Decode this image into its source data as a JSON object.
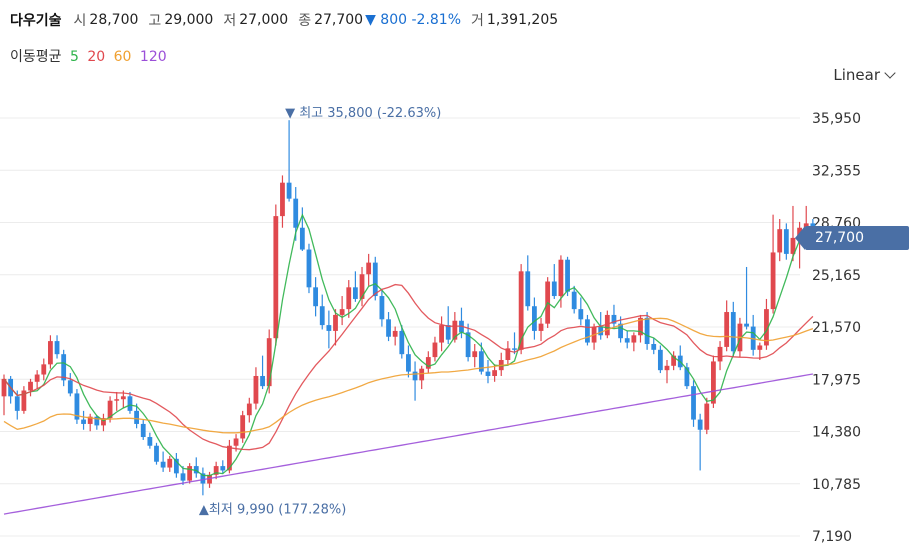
{
  "header": {
    "name": "다우기술",
    "open_label": "시",
    "open": "28,700",
    "high_label": "고",
    "high": "29,000",
    "low_label": "저",
    "low": "27,000",
    "close_label": "종",
    "close": "27,700",
    "change": "▼ 800 -2.81%",
    "volume_label": "거",
    "volume": "1,391,205"
  },
  "ma_legend": {
    "label": "이동평균",
    "periods": [
      {
        "text": "5",
        "color": "#2db34a"
      },
      {
        "text": "20",
        "color": "#e0484e"
      },
      {
        "text": "60",
        "color": "#f0a030"
      },
      {
        "text": "120",
        "color": "#9b4fd8"
      }
    ]
  },
  "scale_selector": {
    "label": "Linear"
  },
  "colors": {
    "up": "#e0484e",
    "down": "#2f8be0",
    "grid": "#ececec",
    "price_tag": "#4a6fa5",
    "ma5": "#2db34a",
    "ma20": "#e0484e",
    "ma60": "#f0a030",
    "ma120": "#9b4fd8"
  },
  "chart_data": {
    "type": "candlestick",
    "y_ticks": [
      "35,950",
      "32,355",
      "28,760",
      "25,165",
      "21,570",
      "17,975",
      "14,380",
      "10,785",
      "7,190"
    ],
    "ylim": [
      7190,
      35950
    ],
    "current_price": "27,700",
    "annotations": {
      "high": {
        "label": "최고",
        "value": "35,800 (-22.63%)",
        "price": 35800,
        "index": 43
      },
      "low": {
        "label": "최저",
        "value": "9,990 (177.28%)",
        "price": 9990,
        "index": 30
      }
    },
    "candles": [
      [
        16800,
        18300,
        15500,
        18000
      ],
      [
        18000,
        18200,
        16300,
        16800
      ],
      [
        16800,
        17200,
        15200,
        15800
      ],
      [
        15800,
        17500,
        15600,
        17200
      ],
      [
        17200,
        18000,
        16800,
        17800
      ],
      [
        17800,
        18600,
        17300,
        18300
      ],
      [
        18300,
        19400,
        17900,
        19000
      ],
      [
        19000,
        21000,
        18700,
        20600
      ],
      [
        20600,
        21000,
        19400,
        19700
      ],
      [
        19700,
        20000,
        17500,
        17900
      ],
      [
        17900,
        18400,
        16800,
        17000
      ],
      [
        17000,
        17300,
        14900,
        15200
      ],
      [
        15200,
        15800,
        14500,
        14900
      ],
      [
        14900,
        15600,
        14400,
        15400
      ],
      [
        15400,
        15500,
        14500,
        14800
      ],
      [
        14800,
        15600,
        14400,
        15300
      ],
      [
        15300,
        16800,
        15000,
        16500
      ],
      [
        16500,
        17100,
        15800,
        16600
      ],
      [
        16600,
        17200,
        16000,
        16800
      ],
      [
        16800,
        17100,
        15600,
        15800
      ],
      [
        15800,
        16300,
        14600,
        14900
      ],
      [
        14900,
        15200,
        13800,
        14000
      ],
      [
        14000,
        14300,
        13200,
        13400
      ],
      [
        13400,
        13600,
        12100,
        12300
      ],
      [
        12300,
        13000,
        11600,
        11900
      ],
      [
        11900,
        12700,
        11600,
        12500
      ],
      [
        12500,
        12900,
        11200,
        11500
      ],
      [
        11500,
        12000,
        10700,
        11000
      ],
      [
        11000,
        12200,
        10800,
        12000
      ],
      [
        12000,
        12600,
        11200,
        11500
      ],
      [
        11500,
        11900,
        9990,
        10800
      ],
      [
        10800,
        11600,
        10500,
        11400
      ],
      [
        11400,
        12300,
        11100,
        12000
      ],
      [
        12000,
        12400,
        11500,
        11700
      ],
      [
        11700,
        13800,
        11500,
        13400
      ],
      [
        13400,
        14200,
        13000,
        13900
      ],
      [
        13900,
        15800,
        13600,
        15500
      ],
      [
        15500,
        16700,
        15000,
        16300
      ],
      [
        16300,
        18800,
        15900,
        18200
      ],
      [
        18200,
        19600,
        17300,
        17500
      ],
      [
        17500,
        21400,
        17000,
        20800
      ],
      [
        20800,
        30000,
        20300,
        29200
      ],
      [
        29200,
        32000,
        28400,
        31500
      ],
      [
        31500,
        35800,
        30200,
        30400
      ],
      [
        30400,
        31200,
        27500,
        28400
      ],
      [
        28400,
        29800,
        26800,
        26900
      ],
      [
        26900,
        27300,
        23900,
        24300
      ],
      [
        24300,
        25000,
        22300,
        23000
      ],
      [
        23000,
        23800,
        21400,
        21700
      ],
      [
        21700,
        22700,
        20100,
        21300
      ],
      [
        21300,
        22800,
        20300,
        22400
      ],
      [
        22400,
        23700,
        21700,
        22800
      ],
      [
        22800,
        24800,
        22200,
        24300
      ],
      [
        24300,
        25400,
        23300,
        23500
      ],
      [
        23500,
        25700,
        23000,
        25200
      ],
      [
        25200,
        26600,
        24400,
        26000
      ],
      [
        26000,
        26400,
        23400,
        23700
      ],
      [
        23700,
        24200,
        21600,
        22100
      ],
      [
        22100,
        22600,
        20600,
        20900
      ],
      [
        20900,
        21600,
        20300,
        21300
      ],
      [
        21300,
        21700,
        19400,
        19700
      ],
      [
        19700,
        20300,
        18100,
        18500
      ],
      [
        18500,
        19200,
        16500,
        17900
      ],
      [
        17900,
        18900,
        17300,
        18700
      ],
      [
        18700,
        19900,
        18400,
        19500
      ],
      [
        19500,
        20900,
        19200,
        20500
      ],
      [
        20500,
        22300,
        19900,
        21700
      ],
      [
        21700,
        23000,
        20400,
        20700
      ],
      [
        20700,
        22600,
        20500,
        22000
      ],
      [
        22000,
        22900,
        20800,
        21200
      ],
      [
        21200,
        21800,
        19200,
        19500
      ],
      [
        19500,
        20400,
        18800,
        19900
      ],
      [
        19900,
        20500,
        18300,
        18500
      ],
      [
        18500,
        19300,
        17700,
        18200
      ],
      [
        18200,
        19000,
        17800,
        18600
      ],
      [
        18600,
        19800,
        18200,
        19300
      ],
      [
        19300,
        20600,
        19000,
        20100
      ],
      [
        20100,
        21200,
        19700,
        20000
      ],
      [
        20000,
        25900,
        19700,
        25400
      ],
      [
        25400,
        26500,
        22700,
        23000
      ],
      [
        23000,
        23600,
        20700,
        21300
      ],
      [
        21300,
        22200,
        20600,
        21800
      ],
      [
        21800,
        25000,
        21500,
        24700
      ],
      [
        24700,
        25900,
        23500,
        23700
      ],
      [
        23700,
        26500,
        22900,
        26200
      ],
      [
        26200,
        26400,
        23700,
        24000
      ],
      [
        24000,
        24400,
        22500,
        22800
      ],
      [
        22800,
        23600,
        21700,
        22100
      ],
      [
        22100,
        22400,
        20300,
        20500
      ],
      [
        20500,
        21800,
        20000,
        21600
      ],
      [
        21600,
        22600,
        20700,
        21000
      ],
      [
        21000,
        22700,
        20800,
        22400
      ],
      [
        22400,
        23100,
        21500,
        21800
      ],
      [
        21800,
        22300,
        20500,
        20800
      ],
      [
        20800,
        21300,
        20100,
        20500
      ],
      [
        20500,
        21200,
        19900,
        21000
      ],
      [
        21000,
        22400,
        20500,
        22200
      ],
      [
        22200,
        22600,
        20000,
        20400
      ],
      [
        20400,
        20800,
        19700,
        20000
      ],
      [
        20000,
        20300,
        18400,
        18600
      ],
      [
        18600,
        19300,
        17700,
        18900
      ],
      [
        18900,
        19900,
        18600,
        19600
      ],
      [
        19600,
        20300,
        18600,
        18800
      ],
      [
        18800,
        19100,
        17300,
        17500
      ],
      [
        17500,
        17900,
        14700,
        15200
      ],
      [
        15200,
        15600,
        11700,
        14500
      ],
      [
        14500,
        16700,
        14200,
        16300
      ],
      [
        16300,
        19600,
        16000,
        19200
      ],
      [
        19200,
        20600,
        18600,
        20200
      ],
      [
        20200,
        23400,
        19900,
        22600
      ],
      [
        22600,
        23300,
        19500,
        19900
      ],
      [
        19900,
        22200,
        19500,
        21800
      ],
      [
        21800,
        25700,
        21400,
        21600
      ],
      [
        21600,
        22400,
        19600,
        20000
      ],
      [
        20000,
        20500,
        19300,
        20300
      ],
      [
        20300,
        23500,
        20000,
        22800
      ],
      [
        22800,
        29300,
        22500,
        26700
      ],
      [
        26700,
        29000,
        26100,
        28300
      ],
      [
        28300,
        28700,
        26200,
        26600
      ],
      [
        26600,
        29900,
        26100,
        27700
      ],
      [
        27700,
        28800,
        25600,
        28400
      ],
      [
        28400,
        29900,
        27600,
        28700
      ],
      [
        28700,
        29000,
        27000,
        27700
      ]
    ]
  }
}
